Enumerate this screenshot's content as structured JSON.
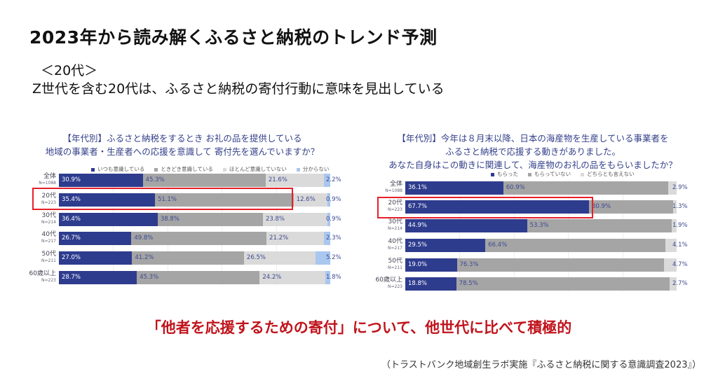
{
  "header": {
    "title": "2023年から読み解くふるさと納税のトレンド予測",
    "subtitle1": "＜20代＞",
    "subtitle2": "Z世代を含む20代は、ふるさと納税の寄付行動に意味を見出している"
  },
  "conclusion": "「他者を応援するための寄付」について、他世代に比べて積極的",
  "source": "（トラストバンク地域創生ラボ実施『ふるさと納税に関する意識調査2023』）",
  "chart_data": [
    {
      "type": "bar",
      "orientation": "horizontal",
      "stacked": true,
      "unit": "%",
      "xlim": [
        0,
        100
      ],
      "title_lines": [
        "【年代別】ふるさと納税をするとき お礼の品を提供している",
        "地域の事業者・生産者への応援を意識して 寄付先を選んでいますか？"
      ],
      "categories": [
        {
          "label": "全体",
          "n": "N=1088"
        },
        {
          "label": "20代",
          "n": "N=223"
        },
        {
          "label": "30代",
          "n": "N=214"
        },
        {
          "label": "40代",
          "n": "N=217"
        },
        {
          "label": "50代",
          "n": "N=211"
        },
        {
          "label": "60歳以上",
          "n": "N=223"
        }
      ],
      "series": [
        {
          "name": "いつも意識している",
          "color": "#2e3c8e",
          "values": [
            30.9,
            35.4,
            36.4,
            26.7,
            27.0,
            28.7
          ]
        },
        {
          "name": "ときどき意識している",
          "color": "#a5a5a5",
          "values": [
            45.3,
            51.1,
            38.8,
            49.8,
            41.2,
            45.3
          ]
        },
        {
          "name": "ほとんど意識していない",
          "color": "#dadada",
          "values": [
            21.6,
            12.6,
            23.8,
            21.2,
            26.5,
            24.2
          ]
        },
        {
          "name": "分からない",
          "color": "#a9c7ef",
          "values": [
            2.2,
            0.9,
            0.9,
            2.3,
            5.2,
            1.8
          ]
        }
      ],
      "highlight": "20代"
    },
    {
      "type": "bar",
      "orientation": "horizontal",
      "stacked": true,
      "unit": "%",
      "xlim": [
        0,
        100
      ],
      "title_lines": [
        "【年代別】今年は８月末以降、日本の海産物を生産している事業者を",
        "ふるさと納税で応援する動きがありました。",
        "あなた自身はこの動きに関連して、海産物のお礼の品をもらいましたか？"
      ],
      "categories": [
        {
          "label": "全体",
          "n": "N=1088"
        },
        {
          "label": "20代",
          "n": "N=223"
        },
        {
          "label": "30代",
          "n": "N=214"
        },
        {
          "label": "40代",
          "n": "N=217"
        },
        {
          "label": "50代",
          "n": "N=211"
        },
        {
          "label": "60歳以上",
          "n": "N=223"
        }
      ],
      "series": [
        {
          "name": "もらった",
          "color": "#2e3c8e",
          "values": [
            36.1,
            67.7,
            44.9,
            29.5,
            19.0,
            18.8
          ]
        },
        {
          "name": "もらっていない",
          "color": "#a5a5a5",
          "values": [
            60.9,
            30.9,
            53.3,
            66.4,
            76.3,
            78.5
          ]
        },
        {
          "name": "どちらとも言えない",
          "color": "#dadada",
          "values": [
            2.9,
            1.3,
            1.9,
            4.1,
            4.7,
            2.7
          ]
        }
      ],
      "highlight": "20代"
    }
  ]
}
